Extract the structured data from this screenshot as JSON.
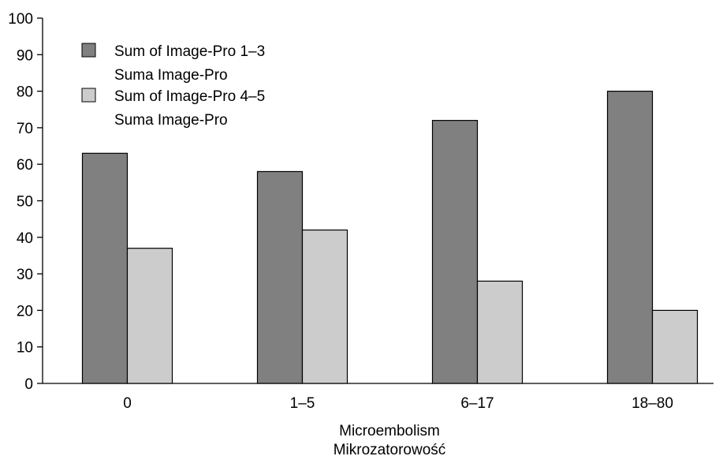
{
  "chart_data": {
    "type": "bar",
    "categories": [
      "0",
      "1–5",
      "6–17",
      "18–80"
    ],
    "series": [
      {
        "name": "Sum of Image-Pro 1–3",
        "name_line2": "Suma Image-Pro",
        "color": "#808080",
        "values": [
          63,
          58,
          72,
          80
        ]
      },
      {
        "name": "Sum of Image-Pro 4–5",
        "name_line2": "Suma Image-Pro",
        "color": "#cccccc",
        "values": [
          37,
          42,
          28,
          20
        ]
      }
    ],
    "xlabel": "Microembolism",
    "xlabel_line2": "Mikrozatorowość",
    "ylabel": "",
    "ylim": [
      0,
      100
    ],
    "yticks": [
      "0",
      "10",
      "20",
      "30",
      "40",
      "50",
      "60",
      "70",
      "80",
      "90",
      "100"
    ],
    "legend_position": "top-left",
    "grid": false
  }
}
